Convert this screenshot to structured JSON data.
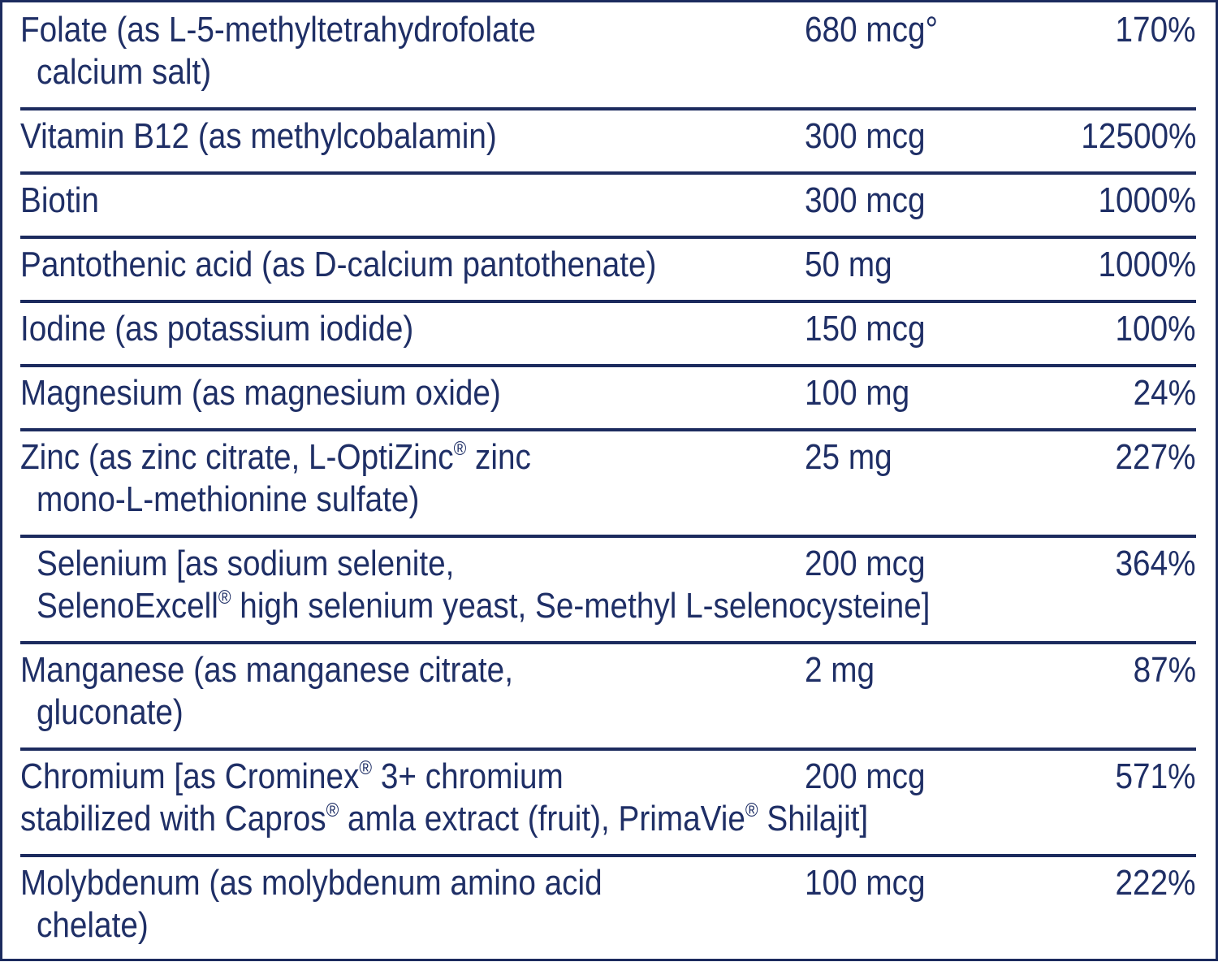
{
  "table": {
    "rows": [
      {
        "name": [
          "Folate (as L-5-methyltetrahydrofolate",
          "calcium salt)"
        ],
        "amount": "680 mcg°",
        "dv": "170%"
      },
      {
        "name": [
          "Vitamin B12 (as methylcobalamin)"
        ],
        "amount": "300 mcg",
        "dv": "12500%"
      },
      {
        "name": [
          "Biotin"
        ],
        "amount": "300 mcg",
        "dv": "1000%"
      },
      {
        "name": [
          "Pantothenic acid (as D-calcium pantothenate)"
        ],
        "amount": "50 mg",
        "dv": "1000%"
      },
      {
        "name": [
          "Iodine (as potassium iodide)"
        ],
        "amount": "150 mcg",
        "dv": "100%"
      },
      {
        "name": [
          "Magnesium (as magnesium oxide)"
        ],
        "amount": "100 mg",
        "dv": "24%"
      },
      {
        "name": [
          "Zinc (as zinc citrate, L-OptiZinc® zinc",
          "mono-L-methionine sulfate)"
        ],
        "amount": "25 mg",
        "dv": "227%"
      },
      {
        "name": [
          "Selenium [as sodium selenite,",
          "SelenoExcell® high selenium yeast, Se-methyl L-selenocysteine]"
        ],
        "amount": "200 mcg",
        "dv": "364%"
      },
      {
        "name": [
          "Manganese (as manganese citrate,",
          "gluconate)"
        ],
        "amount": "2 mg",
        "dv": "87%"
      },
      {
        "name": [
          "Chromium [as Crominex® 3+ chromium",
          "stabilized with Capros® amla extract (fruit), PrimaVie® Shilajit]"
        ],
        "amount": "200 mcg",
        "dv": "571%"
      },
      {
        "name": [
          "Molybdenum (as molybdenum amino acid",
          "chelate)"
        ],
        "amount": "100 mcg",
        "dv": "222%"
      }
    ]
  }
}
